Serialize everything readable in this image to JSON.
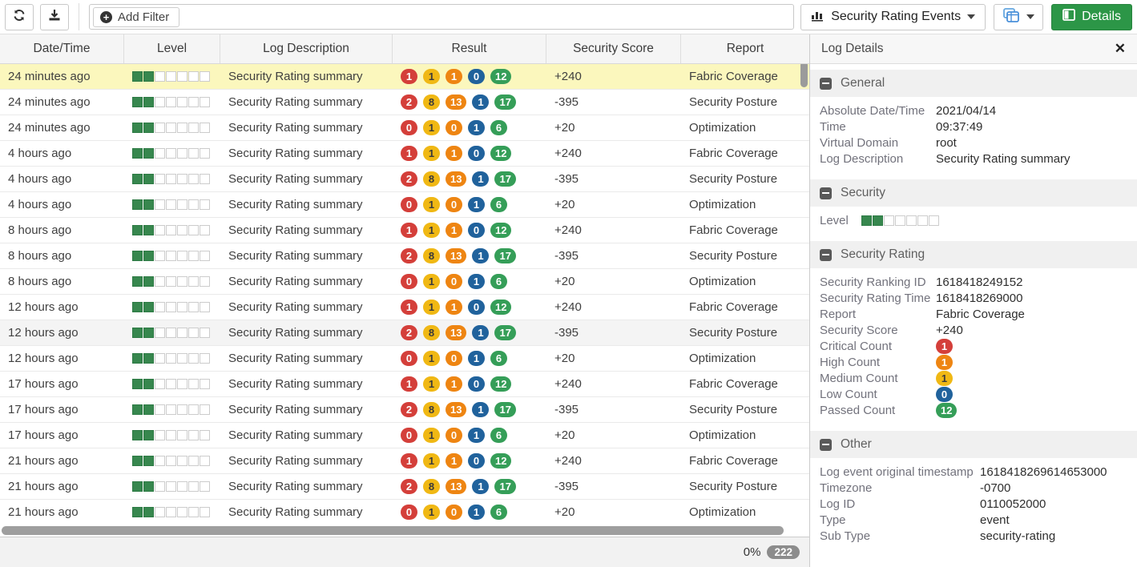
{
  "toolbar": {
    "refresh_icon": "refresh",
    "download_icon": "download",
    "add_filter_label": "Add Filter",
    "plus_icon": "+",
    "view_selector_label": "Security Rating Events",
    "details_label": "Details"
  },
  "colors": {
    "critical": "#d43f3a",
    "medium": "#f0b814",
    "high": "#ee8512",
    "low": "#20629c",
    "passed": "#359e58",
    "medium_text": "#3a3a3a",
    "selected_row": "#fbf7bd",
    "details_button": "#2c9647",
    "level_filled": "#37874e"
  },
  "table": {
    "columns": [
      "Date/Time",
      "Level",
      "Log Description",
      "Result",
      "Security Score",
      "Report"
    ],
    "level_segments": 7,
    "rows": [
      {
        "time": "24 minutes ago",
        "level": 2,
        "desc": "Security Rating summary",
        "badges": [
          1,
          1,
          1,
          0,
          12
        ],
        "score": "+240",
        "report": "Fabric Coverage",
        "state": "selected"
      },
      {
        "time": "24 minutes ago",
        "level": 2,
        "desc": "Security Rating summary",
        "badges": [
          2,
          8,
          13,
          1,
          17
        ],
        "score": "-395",
        "report": "Security Posture",
        "state": ""
      },
      {
        "time": "24 minutes ago",
        "level": 2,
        "desc": "Security Rating summary",
        "badges": [
          0,
          1,
          0,
          1,
          6
        ],
        "score": "+20",
        "report": "Optimization",
        "state": ""
      },
      {
        "time": "4 hours ago",
        "level": 2,
        "desc": "Security Rating summary",
        "badges": [
          1,
          1,
          1,
          0,
          12
        ],
        "score": "+240",
        "report": "Fabric Coverage",
        "state": ""
      },
      {
        "time": "4 hours ago",
        "level": 2,
        "desc": "Security Rating summary",
        "badges": [
          2,
          8,
          13,
          1,
          17
        ],
        "score": "-395",
        "report": "Security Posture",
        "state": ""
      },
      {
        "time": "4 hours ago",
        "level": 2,
        "desc": "Security Rating summary",
        "badges": [
          0,
          1,
          0,
          1,
          6
        ],
        "score": "+20",
        "report": "Optimization",
        "state": ""
      },
      {
        "time": "8 hours ago",
        "level": 2,
        "desc": "Security Rating summary",
        "badges": [
          1,
          1,
          1,
          0,
          12
        ],
        "score": "+240",
        "report": "Fabric Coverage",
        "state": ""
      },
      {
        "time": "8 hours ago",
        "level": 2,
        "desc": "Security Rating summary",
        "badges": [
          2,
          8,
          13,
          1,
          17
        ],
        "score": "-395",
        "report": "Security Posture",
        "state": ""
      },
      {
        "time": "8 hours ago",
        "level": 2,
        "desc": "Security Rating summary",
        "badges": [
          0,
          1,
          0,
          1,
          6
        ],
        "score": "+20",
        "report": "Optimization",
        "state": ""
      },
      {
        "time": "12 hours ago",
        "level": 2,
        "desc": "Security Rating summary",
        "badges": [
          1,
          1,
          1,
          0,
          12
        ],
        "score": "+240",
        "report": "Fabric Coverage",
        "state": ""
      },
      {
        "time": "12 hours ago",
        "level": 2,
        "desc": "Security Rating summary",
        "badges": [
          2,
          8,
          13,
          1,
          17
        ],
        "score": "-395",
        "report": "Security Posture",
        "state": "hover"
      },
      {
        "time": "12 hours ago",
        "level": 2,
        "desc": "Security Rating summary",
        "badges": [
          0,
          1,
          0,
          1,
          6
        ],
        "score": "+20",
        "report": "Optimization",
        "state": ""
      },
      {
        "time": "17 hours ago",
        "level": 2,
        "desc": "Security Rating summary",
        "badges": [
          1,
          1,
          1,
          0,
          12
        ],
        "score": "+240",
        "report": "Fabric Coverage",
        "state": ""
      },
      {
        "time": "17 hours ago",
        "level": 2,
        "desc": "Security Rating summary",
        "badges": [
          2,
          8,
          13,
          1,
          17
        ],
        "score": "-395",
        "report": "Security Posture",
        "state": ""
      },
      {
        "time": "17 hours ago",
        "level": 2,
        "desc": "Security Rating summary",
        "badges": [
          0,
          1,
          0,
          1,
          6
        ],
        "score": "+20",
        "report": "Optimization",
        "state": ""
      },
      {
        "time": "21 hours ago",
        "level": 2,
        "desc": "Security Rating summary",
        "badges": [
          1,
          1,
          1,
          0,
          12
        ],
        "score": "+240",
        "report": "Fabric Coverage",
        "state": ""
      },
      {
        "time": "21 hours ago",
        "level": 2,
        "desc": "Security Rating summary",
        "badges": [
          2,
          8,
          13,
          1,
          17
        ],
        "score": "-395",
        "report": "Security Posture",
        "state": ""
      },
      {
        "time": "21 hours ago",
        "level": 2,
        "desc": "Security Rating summary",
        "badges": [
          0,
          1,
          0,
          1,
          6
        ],
        "score": "+20",
        "report": "Optimization",
        "state": ""
      }
    ],
    "badge_order": [
      "critical",
      "medium",
      "high",
      "low",
      "passed"
    ]
  },
  "footer": {
    "progress": "0%",
    "count": "222"
  },
  "details": {
    "title": "Log Details",
    "close_icon": "✕",
    "sections": [
      {
        "title": "General",
        "label_width": 145,
        "rows": [
          {
            "label": "Absolute Date/Time",
            "value": "2021/04/14"
          },
          {
            "label": "Time",
            "value": "09:37:49"
          },
          {
            "label": "Virtual Domain",
            "value": "root"
          },
          {
            "label": "Log Description",
            "value": "Security Rating summary"
          }
        ]
      },
      {
        "title": "Security",
        "label_width": 52,
        "rows": [
          {
            "label": "Level",
            "value": "",
            "level": 2
          }
        ]
      },
      {
        "title": "Security Rating",
        "label_width": 145,
        "rows": [
          {
            "label": "Security Ranking ID",
            "value": "1618418249152"
          },
          {
            "label": "Security Rating Time",
            "value": "1618418269000"
          },
          {
            "label": "Report",
            "value": "Fabric Coverage"
          },
          {
            "label": "Security Score",
            "value": "+240"
          },
          {
            "label": "Critical Count",
            "value": "1",
            "badge": "critical"
          },
          {
            "label": "High Count",
            "value": "1",
            "badge": "high"
          },
          {
            "label": "Medium Count",
            "value": "1",
            "badge": "medium"
          },
          {
            "label": "Low Count",
            "value": "0",
            "badge": "low"
          },
          {
            "label": "Passed Count",
            "value": "12",
            "badge": "passed"
          }
        ]
      },
      {
        "title": "Other",
        "label_width": 200,
        "rows": [
          {
            "label": "Log event original timestamp",
            "value": "1618418269614653000"
          },
          {
            "label": "Timezone",
            "value": "-0700"
          },
          {
            "label": "Log ID",
            "value": "0110052000"
          },
          {
            "label": "Type",
            "value": "event"
          },
          {
            "label": "Sub Type",
            "value": "security-rating"
          }
        ]
      }
    ]
  }
}
